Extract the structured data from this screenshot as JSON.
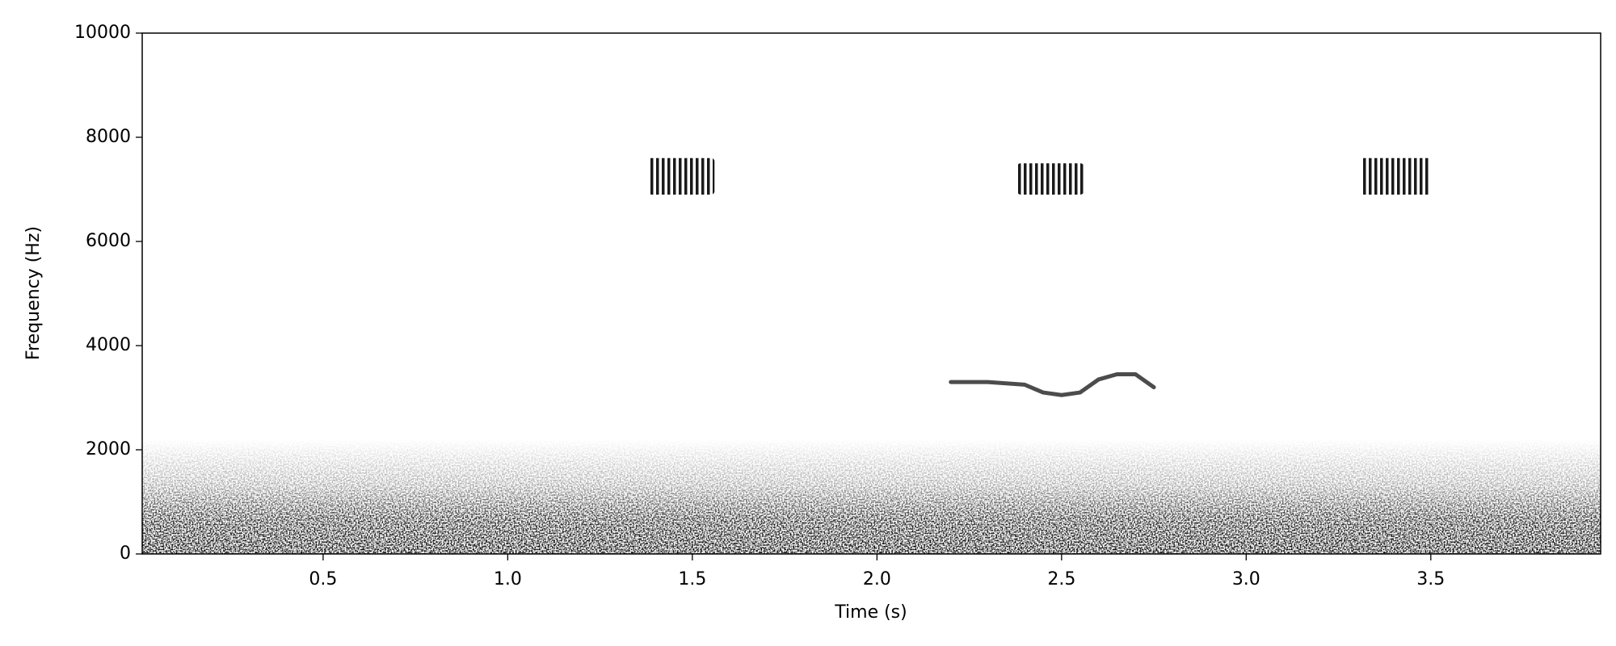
{
  "chart_data": {
    "type": "spectrogram",
    "xlabel": "Time (s)",
    "ylabel": "Frequency (Hz)",
    "color": "#000000",
    "xlim": [
      0.01,
      3.96
    ],
    "ylim": [
      0,
      10000
    ],
    "xticks": [
      0.5,
      {
        "value": 1,
        "label": "1.0"
      },
      1.5,
      {
        "value": 2,
        "label": "2.0"
      },
      2.5,
      {
        "value": 3,
        "label": "3.0"
      },
      3.5
    ],
    "yticks": [
      0,
      2000,
      4000,
      6000,
      8000,
      10000
    ],
    "bursts": [
      {
        "t": [
          1.38,
          1.56
        ],
        "f": [
          6900,
          7600
        ]
      },
      {
        "t": [
          2.38,
          2.56
        ],
        "f": [
          6900,
          7500
        ]
      },
      {
        "t": [
          3.31,
          3.5
        ],
        "f": [
          6900,
          7600
        ]
      }
    ],
    "contour": {
      "x": [
        2.2,
        2.3,
        2.4,
        2.45,
        2.5,
        2.55,
        2.6,
        2.65,
        2.7,
        2.75
      ],
      "y": [
        3300,
        3300,
        3250,
        3100,
        3050,
        3100,
        3350,
        3450,
        3450,
        3200
      ]
    },
    "noise": {
      "f": [
        0,
        2200
      ]
    }
  }
}
